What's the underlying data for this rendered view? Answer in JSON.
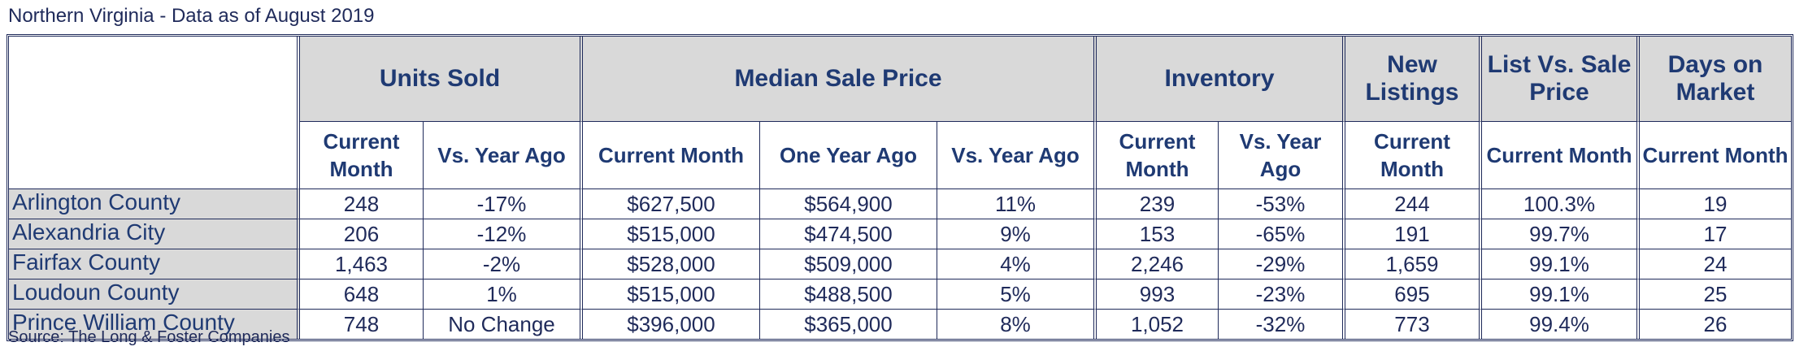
{
  "title": "Northern Virginia - Data as of August 2019",
  "source": "Source: The Long & Foster Companies",
  "groups": {
    "units_sold": "Units Sold",
    "median_sale_price": "Median Sale Price",
    "inventory": "Inventory",
    "new_listings": "New Listings",
    "list_vs_sale": "List Vs. Sale Price",
    "days_on_market": "Days on Market"
  },
  "subheaders": {
    "units_current": "Current Month",
    "units_vs": "Vs. Year Ago",
    "price_current": "Current Month",
    "price_year_ago": "One Year Ago",
    "price_vs": "Vs. Year Ago",
    "inv_current": "Current Month",
    "inv_vs": "Vs. Year Ago",
    "new_current": "Current Month",
    "list_current": "Current Month",
    "days_current": "Current Month"
  },
  "rows": [
    {
      "county": "Arlington County",
      "units": "248",
      "units_vs": "-17%",
      "price": "$627,500",
      "price_prev": "$564,900",
      "price_vs": "11%",
      "inv": "239",
      "inv_vs": "-53%",
      "new": "244",
      "list_sale": "100.3%",
      "days": "19"
    },
    {
      "county": "Alexandria City",
      "units": "206",
      "units_vs": "-12%",
      "price": "$515,000",
      "price_prev": "$474,500",
      "price_vs": "9%",
      "inv": "153",
      "inv_vs": "-65%",
      "new": "191",
      "list_sale": "99.7%",
      "days": "17"
    },
    {
      "county": "Fairfax County",
      "units": "1,463",
      "units_vs": "-2%",
      "price": "$528,000",
      "price_prev": "$509,000",
      "price_vs": "4%",
      "inv": "2,246",
      "inv_vs": "-29%",
      "new": "1,659",
      "list_sale": "99.1%",
      "days": "24"
    },
    {
      "county": "Loudoun County",
      "units": "648",
      "units_vs": "1%",
      "price": "$515,000",
      "price_prev": "$488,500",
      "price_vs": "5%",
      "inv": "993",
      "inv_vs": "-23%",
      "new": "695",
      "list_sale": "99.1%",
      "days": "25"
    },
    {
      "county": "Prince William County",
      "units": "748",
      "units_vs": "No Change",
      "price": "$396,000",
      "price_prev": "$365,000",
      "price_vs": "8%",
      "inv": "1,052",
      "inv_vs": "-32%",
      "new": "773",
      "list_sale": "99.4%",
      "days": "26"
    }
  ]
}
